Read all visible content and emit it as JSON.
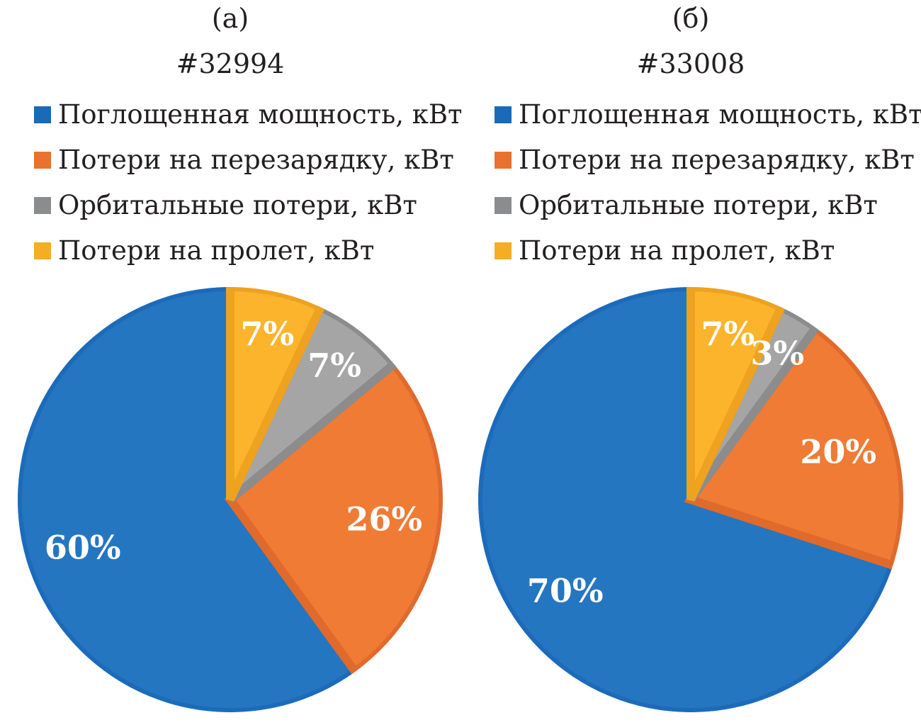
{
  "chart_data": [
    {
      "type": "pie",
      "panel_label": "(а)",
      "title": "#32994",
      "categories": [
        "Поглощенная мощность, кВт",
        "Потери на перезарядку, кВт",
        "Орбитальные потери, кВт",
        "Потери на пролет, кВт"
      ],
      "values": [
        60,
        26,
        7,
        7
      ],
      "value_labels": [
        "60%",
        "26%",
        "7%",
        "7%"
      ],
      "colors": [
        "#2576c0",
        "#ef7b35",
        "#a5a5a5",
        "#fbb42c"
      ],
      "border_colors": [
        "#1c6bbb",
        "#e06a2c",
        "#8c8c8c",
        "#eea21f"
      ],
      "legend_swatch_colors": [
        "#1a6ab8",
        "#e8712f",
        "#8a8c8e",
        "#f5ad22"
      ],
      "legend_position": "top-left"
    },
    {
      "type": "pie",
      "panel_label": "(б)",
      "title": "#33008",
      "categories": [
        "Поглощенная мощность, кВт",
        "Потери на перезарядку, кВт",
        "Орбитальные потери, кВт",
        "Потери на пролет, кВт"
      ],
      "values": [
        70,
        20,
        3,
        7
      ],
      "value_labels": [
        "70%",
        "20%",
        "3%",
        "7%"
      ],
      "colors": [
        "#2576c0",
        "#ef7b35",
        "#a5a5a5",
        "#fbb42c"
      ],
      "border_colors": [
        "#1c6bbb",
        "#e06a2c",
        "#8c8c8c",
        "#eea21f"
      ],
      "legend_swatch_colors": [
        "#1a6ab8",
        "#e8712f",
        "#8a8c8e",
        "#f5ad22"
      ],
      "legend_position": "top-left"
    }
  ]
}
